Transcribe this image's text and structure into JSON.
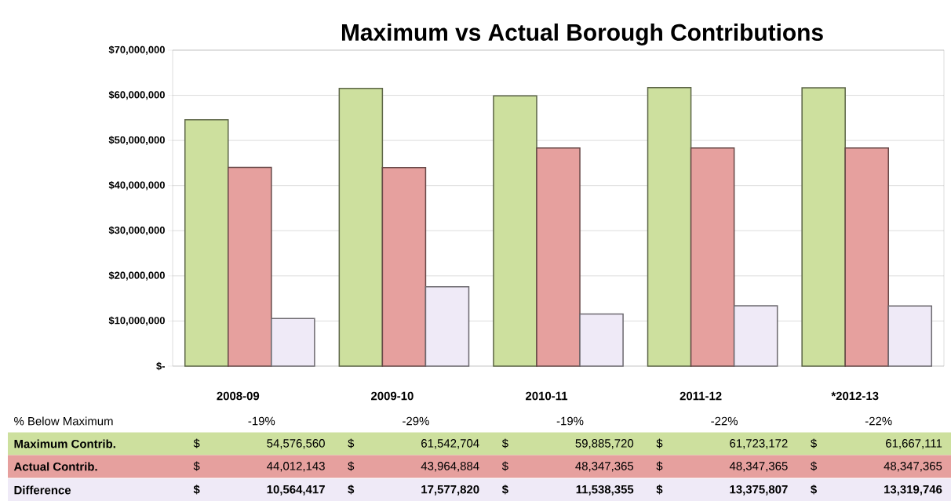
{
  "chart_data": {
    "type": "bar",
    "title": "Maximum vs Actual Borough Contributions",
    "categories": [
      "2008-09",
      "2009-10",
      "2010-11",
      "2011-12",
      "*2012-13"
    ],
    "series": [
      {
        "name": "Maximum Contrib.",
        "color": "#cde09e",
        "values": [
          54576560,
          61542704,
          59885720,
          61723172,
          61667111
        ],
        "value_labels": [
          "$ 54,576,560",
          "$ 61,542,704",
          "$ 59,885,720",
          "$ 61,723,172",
          "$ 61,667,111"
        ]
      },
      {
        "name": "Actual Contrib.",
        "color": "#e6a09e",
        "values": [
          44012143,
          43964884,
          48347365,
          48347365,
          48347365
        ],
        "value_labels": [
          "$ 44,012,143",
          "$ 43,964,884",
          "$ 48,347,365",
          "$ 48,347,365",
          "$ 48,347,365"
        ]
      },
      {
        "name": "Difference",
        "color": "#efeaf7",
        "values": [
          10564417,
          17577820,
          11538355,
          13375807,
          13319746
        ],
        "value_labels": [
          "$ 10,564,417",
          "$ 17,577,820",
          "$ 11,538,355",
          "$ 13,375,807",
          "$ 13,319,746"
        ]
      }
    ],
    "ylim": [
      0,
      70000000
    ],
    "yticks": [
      {
        "value": 0,
        "label": "$-"
      },
      {
        "value": 10000000,
        "label": "$10,000,000"
      },
      {
        "value": 20000000,
        "label": "$20,000,000"
      },
      {
        "value": 30000000,
        "label": "$30,000,000"
      },
      {
        "value": 40000000,
        "label": "$40,000,000"
      },
      {
        "value": 50000000,
        "label": "$50,000,000"
      },
      {
        "value": 60000000,
        "label": "$60,000,000"
      },
      {
        "value": 70000000,
        "label": "$70,000,000"
      }
    ],
    "grid": "y",
    "annotations": [
      "% Below Maximum",
      "-19%",
      "-29%",
      "-19%",
      "-22%",
      "-22%"
    ]
  }
}
